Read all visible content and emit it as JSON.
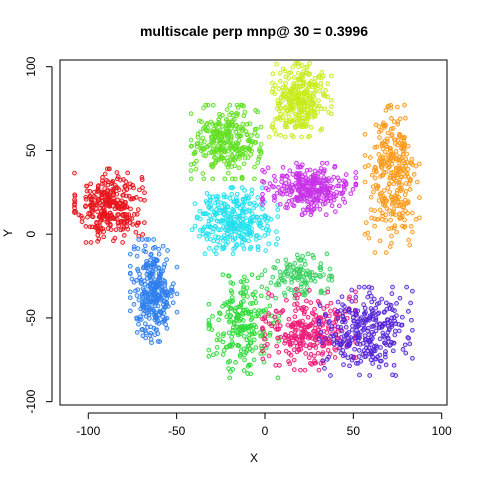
{
  "chart_data": {
    "type": "scatter",
    "title": "multiscale perp mnp@ 30 = 0.3996",
    "xlabel": "X",
    "ylabel": "Y",
    "xlim": [
      -116,
      103
    ],
    "ylim": [
      -102,
      104
    ],
    "x_ticks": [
      -100,
      -50,
      0,
      50,
      100
    ],
    "y_ticks": [
      -100,
      -50,
      0,
      50,
      100
    ],
    "grid": false,
    "legend": "none",
    "marker": "open circle",
    "clusters": [
      {
        "color": "#e8141c",
        "center": [
          -88,
          17
        ],
        "spread": [
          9,
          10
        ],
        "count": 300
      },
      {
        "color": "#2f7fee",
        "center": [
          -63,
          -34
        ],
        "spread": [
          6,
          14
        ],
        "count": 300
      },
      {
        "color": "#22e0ee",
        "center": [
          -17,
          8
        ],
        "spread": [
          11,
          9
        ],
        "count": 300
      },
      {
        "color": "#62df24",
        "center": [
          -22,
          55
        ],
        "spread": [
          9,
          10
        ],
        "count": 300
      },
      {
        "color": "#c6ec1c",
        "center": [
          20,
          80
        ],
        "spread": [
          8,
          10
        ],
        "count": 300
      },
      {
        "color": "#c732e8",
        "center": [
          25,
          27
        ],
        "spread": [
          12,
          7
        ],
        "count": 300
      },
      {
        "color": "#fb9a1c",
        "center": [
          72,
          33
        ],
        "spread": [
          7,
          20
        ],
        "count": 300
      },
      {
        "color": "#2fd93a",
        "center": [
          -12,
          -55
        ],
        "spread": [
          9,
          14
        ],
        "count": 220
      },
      {
        "color": "#3ad060",
        "center": [
          18,
          -25
        ],
        "spread": [
          9,
          6
        ],
        "count": 120
      },
      {
        "color": "#ee1c78",
        "center": [
          25,
          -57
        ],
        "spread": [
          12,
          11
        ],
        "count": 280
      },
      {
        "color": "#5526d7",
        "center": [
          57,
          -58
        ],
        "spread": [
          12,
          12
        ],
        "count": 300
      }
    ]
  }
}
